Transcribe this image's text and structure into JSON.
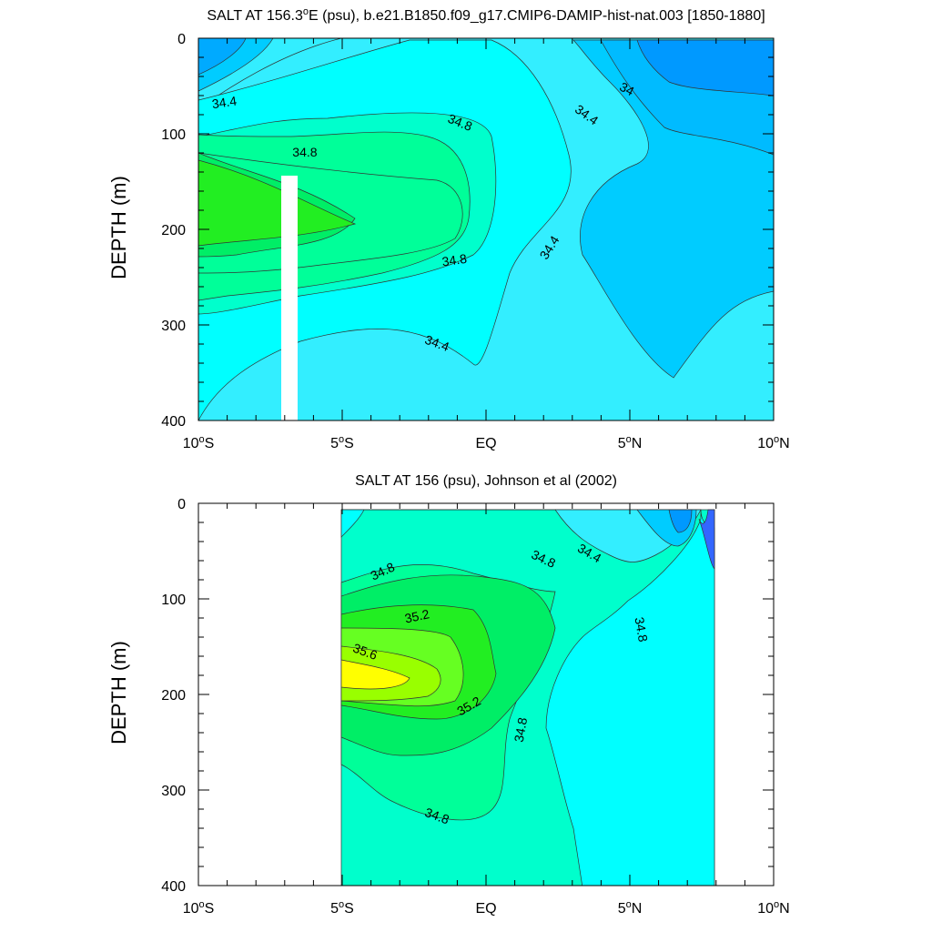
{
  "chart_data": [
    {
      "type": "contour",
      "title_main": "SALT AT 156.3",
      "title_sup": "o",
      "title_rest": "E (psu), b.e21.B1850.f09_g17.CMIP6-DAMIP-hist-nat.003 [1850-1880]",
      "ylabel": "DEPTH (m)",
      "xlabel": "",
      "xlim": [
        -10,
        10
      ],
      "ylim": [
        400,
        0
      ],
      "y_ticks": [
        "0",
        "100",
        "200",
        "300",
        "400"
      ],
      "x_ticks": [
        {
          "main": "10",
          "sup": "o",
          "rest": "S"
        },
        {
          "main": "5",
          "sup": "o",
          "rest": "S"
        },
        {
          "main": "EQ",
          "sup": "",
          "rest": ""
        },
        {
          "main": "5",
          "sup": "o",
          "rest": "N"
        },
        {
          "main": "10",
          "sup": "o",
          "rest": "N"
        }
      ],
      "contour_labels": [
        {
          "text": "34.4",
          "lat": -9.1,
          "depth": 67,
          "angle": -8
        },
        {
          "text": "34.8",
          "lat": -6.3,
          "depth": 119,
          "angle": 0
        },
        {
          "text": "34.8",
          "lat": -0.9,
          "depth": 88,
          "angle": 22
        },
        {
          "text": "34.8",
          "lat": -1.1,
          "depth": 232,
          "angle": -8
        },
        {
          "text": "34",
          "lat": 4.9,
          "depth": 53,
          "angle": 28
        },
        {
          "text": "34.4",
          "lat": 3.5,
          "depth": 80,
          "angle": 35
        },
        {
          "text": "34.4",
          "lat": 2.2,
          "depth": 219,
          "angle": -58
        },
        {
          "text": "34.4",
          "lat": -1.7,
          "depth": 319,
          "angle": 20
        }
      ]
    },
    {
      "type": "contour",
      "title_main": "SALT AT 156 (psu), Johnson et al (2002)",
      "title_sup": "",
      "title_rest": "",
      "ylabel": "DEPTH (m)",
      "xlabel": "",
      "xlim": [
        -10,
        10
      ],
      "ylim": [
        400,
        0
      ],
      "y_ticks": [
        "0",
        "100",
        "200",
        "300",
        "400"
      ],
      "x_ticks": [
        {
          "main": "10",
          "sup": "o",
          "rest": "S"
        },
        {
          "main": "5",
          "sup": "o",
          "rest": "S"
        },
        {
          "main": "EQ",
          "sup": "",
          "rest": ""
        },
        {
          "main": "5",
          "sup": "o",
          "rest": "N"
        },
        {
          "main": "10",
          "sup": "o",
          "rest": "N"
        }
      ],
      "contour_labels": [
        {
          "text": "34.8",
          "lat": -3.6,
          "depth": 71,
          "angle": -25
        },
        {
          "text": "35.2",
          "lat": -2.4,
          "depth": 118,
          "angle": -12
        },
        {
          "text": "35.6",
          "lat": -4.2,
          "depth": 155,
          "angle": 20
        },
        {
          "text": "35.2",
          "lat": -0.6,
          "depth": 212,
          "angle": -30
        },
        {
          "text": "34.8",
          "lat": 1.2,
          "depth": 237,
          "angle": -80
        },
        {
          "text": "34.8",
          "lat": 2.0,
          "depth": 58,
          "angle": 25
        },
        {
          "text": "34.4",
          "lat": 3.6,
          "depth": 52,
          "angle": 30
        },
        {
          "text": "34.8",
          "lat": 5.4,
          "depth": 132,
          "angle": 80
        },
        {
          "text": "34.8",
          "lat": -1.7,
          "depth": 327,
          "angle": 20
        }
      ]
    }
  ]
}
